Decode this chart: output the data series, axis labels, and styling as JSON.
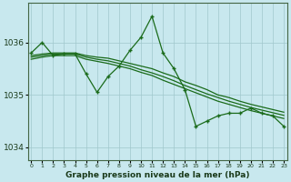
{
  "background_color": "#c8e8ee",
  "grid_color": "#a0c8cc",
  "line_color": "#1a6b1a",
  "xlabel": "Graphe pression niveau de la mer (hPa)",
  "xlabel_fontsize": 6.5,
  "ylim": [
    1033.75,
    1036.75
  ],
  "xlim": [
    -0.3,
    23.3
  ],
  "yticks": [
    1034,
    1035,
    1036
  ],
  "ytick_labels": [
    "1034",
    "1035",
    "1036"
  ],
  "xtick_labels": [
    "0",
    "1",
    "2",
    "3",
    "4",
    "5",
    "6",
    "7",
    "8",
    "9",
    "10",
    "11",
    "12",
    "13",
    "14",
    "15",
    "16",
    "17",
    "18",
    "19",
    "20",
    "21",
    "22",
    "23"
  ],
  "series_zigzag": [
    1035.8,
    1036.0,
    1035.75,
    1035.78,
    1035.78,
    1035.4,
    1035.05,
    1035.35,
    1035.55,
    1035.85,
    1036.1,
    1036.5,
    1035.8,
    1035.5,
    1035.1,
    1034.4,
    1034.5,
    1034.6,
    1034.65,
    1034.65,
    1034.75,
    1034.65,
    1034.6,
    1034.4
  ],
  "series_trend1": [
    1035.75,
    1035.78,
    1035.8,
    1035.8,
    1035.8,
    1035.75,
    1035.72,
    1035.7,
    1035.65,
    1035.6,
    1035.55,
    1035.5,
    1035.42,
    1035.35,
    1035.25,
    1035.18,
    1035.1,
    1035.0,
    1034.95,
    1034.88,
    1034.82,
    1034.77,
    1034.72,
    1034.67
  ],
  "series_trend2": [
    1035.72,
    1035.75,
    1035.78,
    1035.78,
    1035.78,
    1035.72,
    1035.68,
    1035.65,
    1035.6,
    1035.55,
    1035.48,
    1035.42,
    1035.35,
    1035.27,
    1035.18,
    1035.1,
    1035.02,
    1034.95,
    1034.88,
    1034.82,
    1034.76,
    1034.71,
    1034.66,
    1034.61
  ],
  "series_trend3": [
    1035.68,
    1035.72,
    1035.75,
    1035.75,
    1035.75,
    1035.68,
    1035.64,
    1035.6,
    1035.55,
    1035.5,
    1035.43,
    1035.37,
    1035.28,
    1035.2,
    1035.12,
    1035.04,
    1034.96,
    1034.88,
    1034.82,
    1034.76,
    1034.7,
    1034.65,
    1034.6,
    1034.55
  ]
}
